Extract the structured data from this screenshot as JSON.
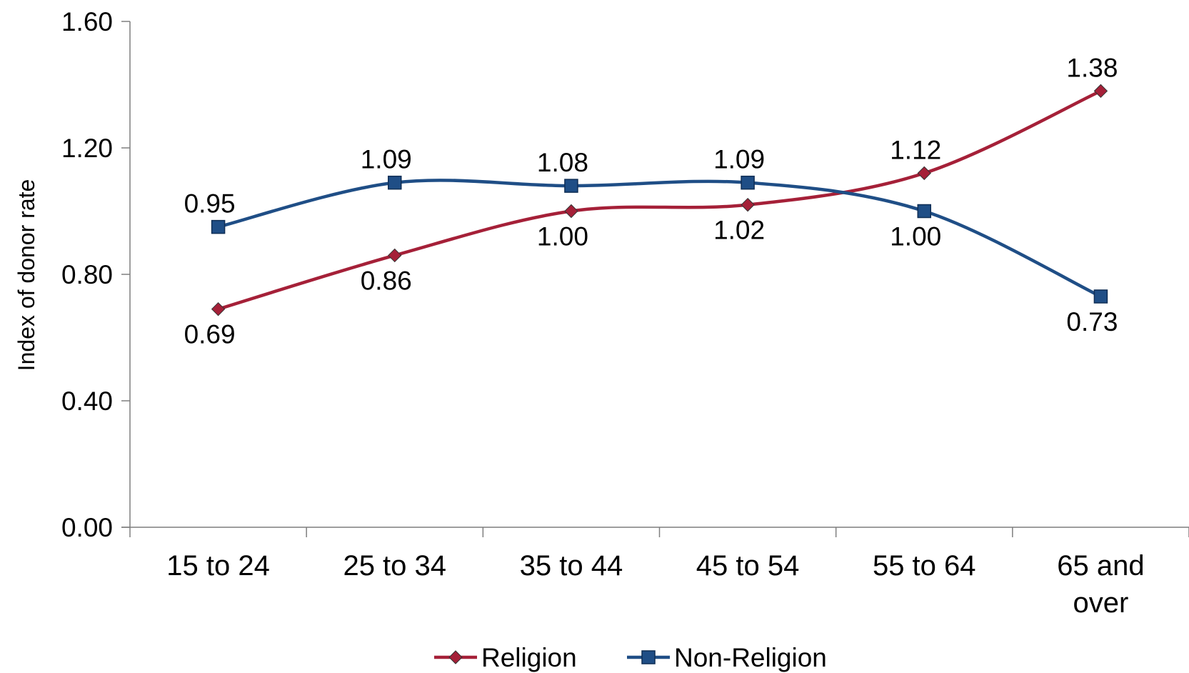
{
  "chart_data": {
    "type": "line",
    "smooth": true,
    "categories": [
      [
        "15 to 24"
      ],
      [
        "25 to 34"
      ],
      [
        "35 to 44"
      ],
      [
        "45 to 54"
      ],
      [
        "55 to 64"
      ],
      [
        "65 and",
        "over"
      ]
    ],
    "series": [
      {
        "name": "Religion",
        "values": [
          0.69,
          0.86,
          1.0,
          1.02,
          1.12,
          1.38
        ],
        "labels": [
          "0.69",
          "0.86",
          "1.00",
          "1.02",
          "1.12",
          "1.38"
        ],
        "label_position": [
          "below",
          "below",
          "below",
          "below",
          "above",
          "above"
        ],
        "color": "#A52038",
        "marker": "diamond"
      },
      {
        "name": "Non-Religion",
        "values": [
          0.95,
          1.09,
          1.08,
          1.09,
          1.0,
          0.73
        ],
        "labels": [
          "0.95",
          "1.09",
          "1.08",
          "1.09",
          "1.00",
          "0.73"
        ],
        "label_position": [
          "above",
          "above",
          "above",
          "above",
          "below",
          "below"
        ],
        "color": "#1F4E86",
        "marker": "square"
      }
    ],
    "y_ticks": [
      "0.00",
      "0.40",
      "0.80",
      "1.20",
      "1.60"
    ],
    "ylim": [
      0,
      1.6
    ],
    "ylabel": "Index of donor rate",
    "xlabel": "",
    "title": "",
    "grid": false,
    "legend_position": "bottom"
  }
}
